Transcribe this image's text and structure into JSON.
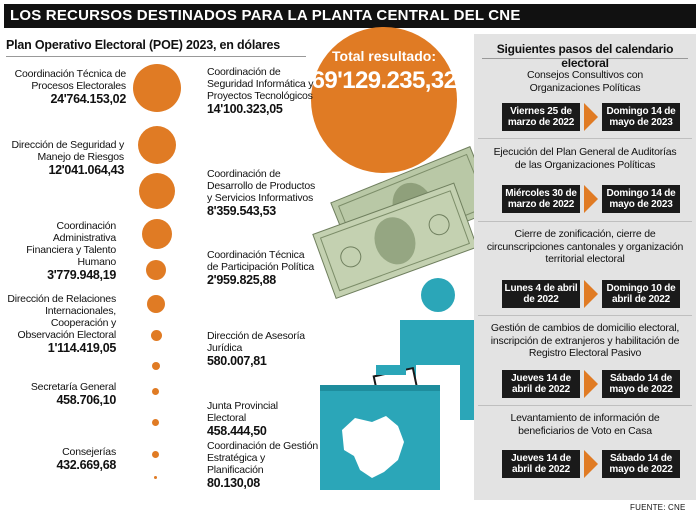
{
  "header": {
    "title": "LOS RECURSOS DESTINADOS PARA LA PLANTA CENTRAL DEL CNE"
  },
  "poe": {
    "subtitle": "Plan Operativo Electoral (POE) 2023, en dólares",
    "total_label": "Total resultado:",
    "total_value": "69'129.235,32",
    "items": [
      {
        "name": "Coordinación Técnica de Procesos Electorales",
        "amount": "24'764.153,02"
      },
      {
        "name": "Coordinación de Seguridad Informática y Proyectos Tecnológicos",
        "amount": "14'100.323,05"
      },
      {
        "name": "Dirección de Seguridad y Manejo de Riesgos",
        "amount": "12'041.064,43"
      },
      {
        "name": "Coordinación de Desarrollo de Productos y Servicios Informativos",
        "amount": "8'359.543,53"
      },
      {
        "name": "Coordinación Administrativa Financiera y Talento Humano",
        "amount": "3'779.948,19"
      },
      {
        "name": "Coordinación Técnica de Participación Política",
        "amount": "2'959.825,88"
      },
      {
        "name": "Dirección de Relaciones Internacionales, Cooperación y Observación Electoral",
        "amount": "1'114.419,05"
      },
      {
        "name": "Dirección de Asesoría Jurídica",
        "amount": "580.007,81"
      },
      {
        "name": "Secretaría General",
        "amount": "458.706,10"
      },
      {
        "name": "Junta Provincial Electoral",
        "amount": "458.444,50"
      },
      {
        "name": "Consejerías",
        "amount": "432.669,68"
      },
      {
        "name": "Coordinación de Gestión Estratégica y Planificación",
        "amount": "80.130,08"
      }
    ]
  },
  "steps": {
    "title": "Siguientes pasos del calendario electoral",
    "items": [
      {
        "text": "Consejos Consultivos con Organizaciones Políticas",
        "start": "Viernes 25 de marzo de 2022",
        "end": "Domingo 14 de mayo de 2023"
      },
      {
        "text": "Ejecución del Plan General de Auditorías de las Organizaciones Políticas",
        "start": "Miércoles 30 de marzo de 2022",
        "end": "Domingo 14 de mayo de 2023"
      },
      {
        "text": "Cierre de zonificación, cierre de circunscripciones cantonales y organización territorial electoral",
        "start": "Lunes 4 de abril de 2022",
        "end": "Domingo 10 de abril de 2022"
      },
      {
        "text": "Gestión de cambios de domicilio electoral, inscripción de extranjeros y habilitación de Registro Electoral Pasivo",
        "start": "Jueves 14 de abril de 2022",
        "end": "Sábado 14 de mayo de 2022"
      },
      {
        "text": "Levantamiento de información de beneficiarios de Voto en Casa",
        "start": "Jueves 14 de abril de 2022",
        "end": "Sábado 14 de mayo de 2022"
      }
    ]
  },
  "source": "FUENTE: CNE",
  "colors": {
    "accent": "#e07b24",
    "teal": "#2ba6b8",
    "dark": "#1a1a1a",
    "panel": "#e3e3e3"
  }
}
